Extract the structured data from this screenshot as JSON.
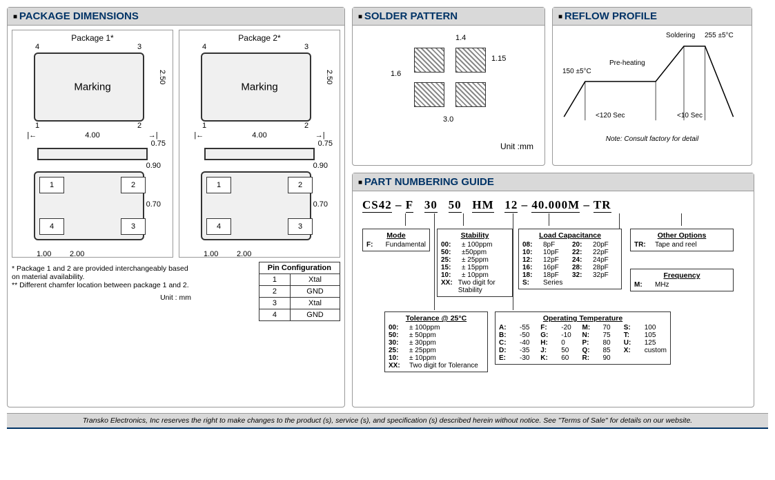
{
  "headers": {
    "pkgdim": "PACKAGE DIMENSIONS",
    "solder": "SOLDER PATTERN",
    "reflow": "REFLOW PROFILE",
    "partnum": "PART NUMBERING GUIDE"
  },
  "package": {
    "p1label": "Package 1*",
    "p2label": "Package 2*",
    "marking": "Marking",
    "dim_w": "4.00",
    "dim_h": "2.50",
    "dim_side_h": "0.75",
    "dim_pad_a": "0.90",
    "dim_pad_b": "0.70",
    "dim_bot_x1": "1.00",
    "dim_bot_x2": "2.00",
    "pins": {
      "1": "1",
      "2": "2",
      "3": "3",
      "4": "4"
    },
    "note1": "* Package 1 and 2 are provided interchangeably based on material availability.",
    "note2": "** Different chamfer location between package 1 and 2.",
    "unit": "Unit : mm",
    "pinconfig_title": "Pin Configuration",
    "pinrows": [
      {
        "n": "1",
        "v": "Xtal"
      },
      {
        "n": "2",
        "v": "GND"
      },
      {
        "n": "3",
        "v": "Xtal"
      },
      {
        "n": "4",
        "v": "GND"
      }
    ]
  },
  "solder": {
    "d_w": "1.4",
    "d_h": "1.15",
    "d_gap_v": "1.6",
    "d_gap_h": "3.0",
    "unit": "Unit :mm"
  },
  "reflow": {
    "t_pre": "150 ±5°C",
    "t_solder": "255 ±5°C",
    "l_pre": "Pre-heating",
    "l_solder": "Soldering",
    "l_t1": "<120 Sec",
    "l_t2": "<10 Sec",
    "note": "Note: Consult  factory for detail"
  },
  "pn": {
    "s1": "CS42",
    "s2": "F",
    "s3": "30",
    "s4": "50",
    "s5": "HM",
    "s6": "12",
    "s7": "40.000M",
    "s8": "TR",
    "mode_title": "Mode",
    "mode_text": "Fundamental",
    "mode_code": "F:",
    "stab_title": "Stability",
    "stab": [
      {
        "c": "00:",
        "v": "± 100ppm"
      },
      {
        "c": "50:",
        "v": "±50ppm"
      },
      {
        "c": "25:",
        "v": "± 25ppm"
      },
      {
        "c": "15:",
        "v": "± 15ppm"
      },
      {
        "c": "10:",
        "v": "± 10ppm"
      },
      {
        "c": "XX:",
        "v": "Two digit for Stability"
      }
    ],
    "loadc_title": "Load Capacitance",
    "loadc": [
      {
        "c": "08:",
        "v": "8pF"
      },
      {
        "c": "20:",
        "v": "20pF"
      },
      {
        "c": "10:",
        "v": "10pF"
      },
      {
        "c": "22:",
        "v": "22pF"
      },
      {
        "c": "12:",
        "v": "12pF"
      },
      {
        "c": "24:",
        "v": "24pF"
      },
      {
        "c": "16:",
        "v": "16pF"
      },
      {
        "c": "28:",
        "v": "28pF"
      },
      {
        "c": "18:",
        "v": "18pF"
      },
      {
        "c": "32:",
        "v": "32pF"
      },
      {
        "c": "S:",
        "v": "Series"
      }
    ],
    "other_title": "Other Options",
    "other_code": "TR:",
    "other_text": "Tape and reel",
    "freq_title": "Frequency",
    "freq_code": "M:",
    "freq_text": "MHz",
    "tol_title": "Tolerance @ 25°C",
    "tol": [
      {
        "c": "00:",
        "v": "± 100ppm"
      },
      {
        "c": "50:",
        "v": "± 50ppm"
      },
      {
        "c": "30:",
        "v": "± 30ppm"
      },
      {
        "c": "25:",
        "v": "± 25ppm"
      },
      {
        "c": "10:",
        "v": "± 10ppm"
      },
      {
        "c": "XX:",
        "v": "Two digit for Tolerance"
      }
    ],
    "optemp_title": "Operating Temperature",
    "optemp": [
      {
        "c": "A:",
        "v": "-55"
      },
      {
        "c": "F:",
        "v": "-20"
      },
      {
        "c": "M:",
        "v": "70"
      },
      {
        "c": "S:",
        "v": "100"
      },
      {
        "c": "B:",
        "v": "-50"
      },
      {
        "c": "G:",
        "v": "-10"
      },
      {
        "c": "N:",
        "v": "75"
      },
      {
        "c": "T:",
        "v": "105"
      },
      {
        "c": "C:",
        "v": "-40"
      },
      {
        "c": "H:",
        "v": "0"
      },
      {
        "c": "P:",
        "v": "80"
      },
      {
        "c": "U:",
        "v": "125"
      },
      {
        "c": "D:",
        "v": "-35"
      },
      {
        "c": "J:",
        "v": "50"
      },
      {
        "c": "Q:",
        "v": "85"
      },
      {
        "c": "X:",
        "v": "custom"
      },
      {
        "c": "E:",
        "v": "-30"
      },
      {
        "c": "K:",
        "v": "60"
      },
      {
        "c": "R:",
        "v": "90"
      }
    ]
  },
  "footer": "Transko Electronics, Inc reserves the right to make changes to the product (s), service (s), and specification (s) described herein without  notice.  See \"Terms of Sale\" for details on our website."
}
